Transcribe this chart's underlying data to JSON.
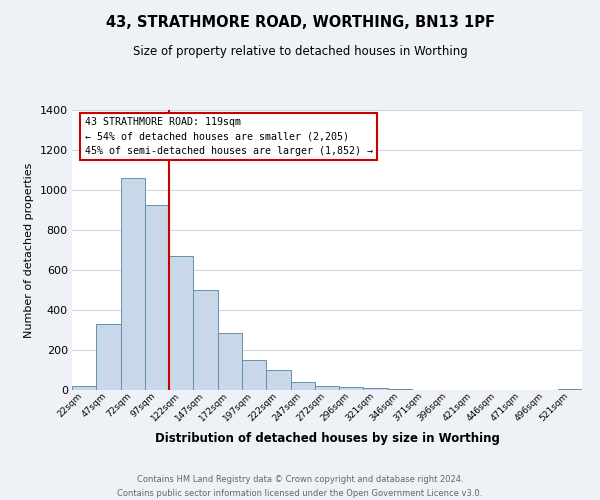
{
  "title": "43, STRATHMORE ROAD, WORTHING, BN13 1PF",
  "subtitle": "Size of property relative to detached houses in Worthing",
  "xlabel": "Distribution of detached houses by size in Worthing",
  "ylabel": "Number of detached properties",
  "bar_labels": [
    "22sqm",
    "47sqm",
    "72sqm",
    "97sqm",
    "122sqm",
    "147sqm",
    "172sqm",
    "197sqm",
    "222sqm",
    "247sqm",
    "272sqm",
    "296sqm",
    "321sqm",
    "346sqm",
    "371sqm",
    "396sqm",
    "421sqm",
    "446sqm",
    "471sqm",
    "496sqm",
    "521sqm"
  ],
  "bar_values": [
    20,
    330,
    1060,
    925,
    670,
    500,
    285,
    150,
    100,
    40,
    20,
    15,
    10,
    5,
    0,
    0,
    0,
    0,
    0,
    0,
    5
  ],
  "bar_color": "#c8d8e8",
  "bar_edge_color": "#6090b0",
  "ylim": [
    0,
    1400
  ],
  "yticks": [
    0,
    200,
    400,
    600,
    800,
    1000,
    1200,
    1400
  ],
  "vline_index": 4,
  "vline_color": "#cc0000",
  "annotation_title": "43 STRATHMORE ROAD: 119sqm",
  "annotation_line1": "← 54% of detached houses are smaller (2,205)",
  "annotation_line2": "45% of semi-detached houses are larger (1,852) →",
  "annotation_box_color": "#ffffff",
  "annotation_box_edge": "#cc0000",
  "footer1": "Contains HM Land Registry data © Crown copyright and database right 2024.",
  "footer2": "Contains public sector information licensed under the Open Government Licence v3.0.",
  "bg_color": "#eef2f7",
  "plot_bg_color": "#ffffff",
  "grid_color": "#ccd8e8"
}
